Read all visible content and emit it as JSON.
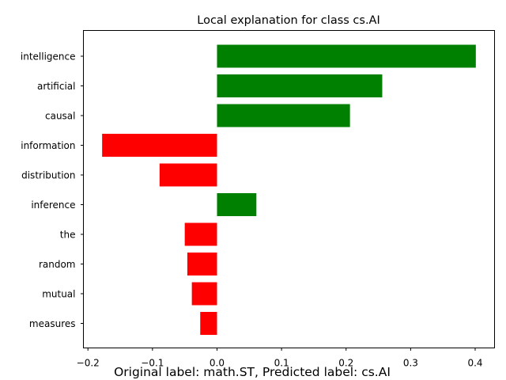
{
  "chart_data": {
    "type": "bar",
    "orientation": "horizontal",
    "title": "Local explanation for class cs.AI",
    "caption": "Original label: math.ST, Predicted label: cs.AI",
    "xlabel": "",
    "ylabel": "",
    "categories": [
      "intelligence",
      "artificial",
      "causal",
      "information",
      "distribution",
      "inference",
      "the",
      "random",
      "mutual",
      "measures"
    ],
    "values": [
      0.401,
      0.256,
      0.206,
      -0.178,
      -0.089,
      0.061,
      -0.05,
      -0.046,
      -0.039,
      -0.026
    ],
    "xlim": [
      -0.207,
      0.43
    ],
    "xticks": [
      -0.2,
      -0.1,
      0.0,
      0.1,
      0.2,
      0.3,
      0.4
    ],
    "xtick_labels": [
      "−0.2",
      "−0.1",
      "0.0",
      "0.1",
      "0.2",
      "0.3",
      "0.4"
    ],
    "grid": false,
    "colors": {
      "positive": "#008000",
      "negative": "#ff0000",
      "axis": "#000000"
    }
  }
}
